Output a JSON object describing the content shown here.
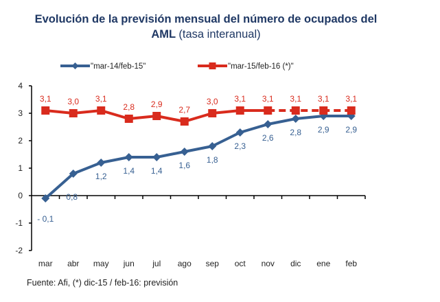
{
  "chart_data": {
    "type": "line",
    "title": "Evolución de la previsión mensual del número de ocupados del",
    "title_line2_bold": "AML",
    "title_line2_normal": "(tasa interanual)",
    "xlabel": "",
    "ylabel": "",
    "categories": [
      "mar",
      "abr",
      "may",
      "jun",
      "jul",
      "ago",
      "sep",
      "oct",
      "nov",
      "dic",
      "ene",
      "feb"
    ],
    "ylim": [
      -2,
      4
    ],
    "yticks": [
      4,
      3,
      2,
      1,
      0,
      -1,
      -2
    ],
    "grid": false,
    "legend_position": "top",
    "series": [
      {
        "name": "\"mar-14/feb-15\"",
        "color": "#376092",
        "marker": "diamond",
        "values": [
          -0.1,
          0.8,
          1.2,
          1.4,
          1.4,
          1.6,
          1.8,
          2.3,
          2.6,
          2.8,
          2.9,
          2.9
        ],
        "labels": [
          "- 0,1",
          "0,8",
          "1,2",
          "1,4",
          "1,4",
          "1,6",
          "1,8",
          "2,3",
          "2,6",
          "2,8",
          "2,9",
          "2,9"
        ],
        "label_position": "below"
      },
      {
        "name": "\"mar-15/feb-16 (*)\"",
        "color": "#d92b1d",
        "marker": "square",
        "values": [
          3.1,
          3.0,
          3.1,
          2.8,
          2.9,
          2.7,
          3.0,
          3.1,
          3.1,
          3.1,
          3.1,
          3.1
        ],
        "labels": [
          "3,1",
          "3,0",
          "3,1",
          "2,8",
          "2,9",
          "2,7",
          "3,0",
          "3,1",
          "3,1",
          "3,1",
          "3,1",
          "3,1"
        ],
        "label_position": "above",
        "dashed_from_index": 8
      }
    ]
  },
  "source": "Fuente: Afi, (*) dic-15 / feb-16: previsión"
}
